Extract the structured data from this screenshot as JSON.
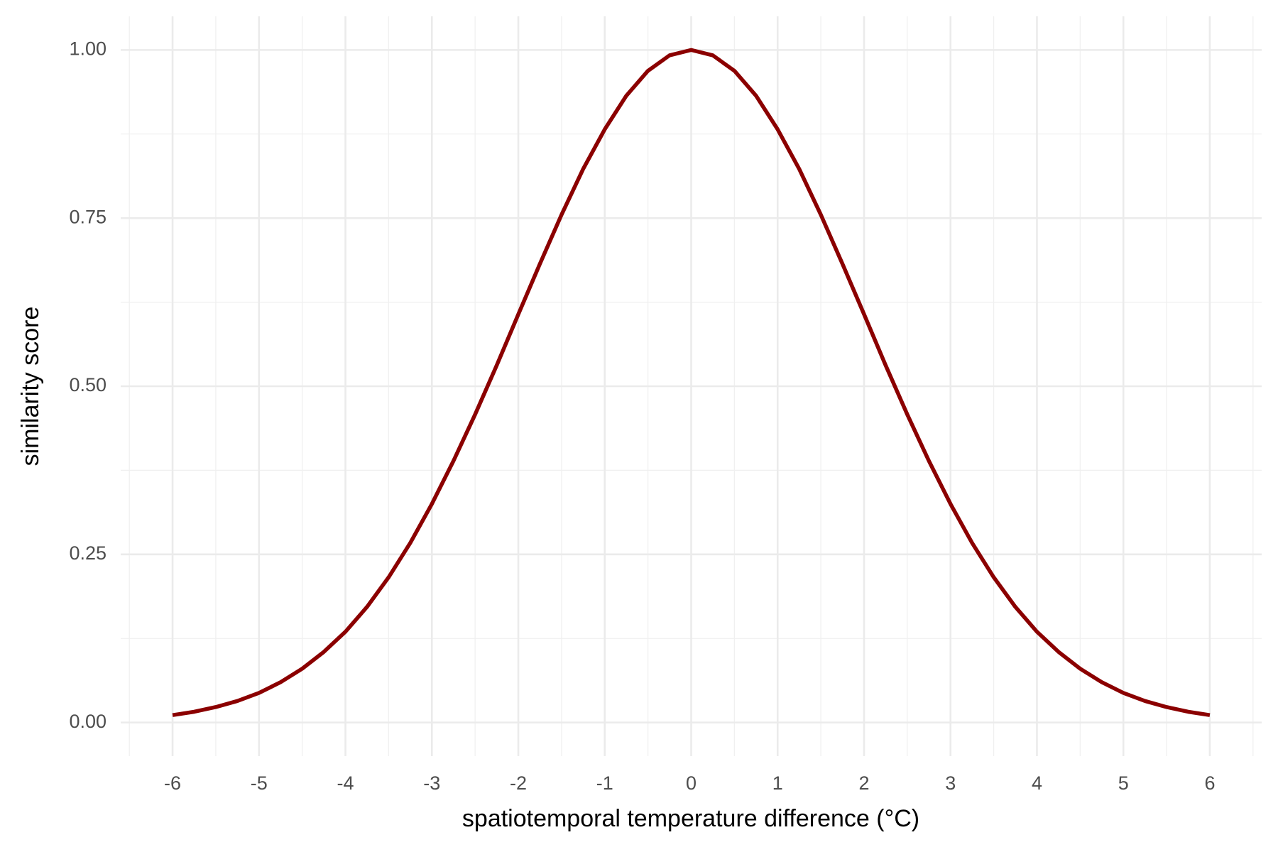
{
  "chart_data": {
    "type": "line",
    "x_label": "spatiotemporal temperature difference (°C)",
    "y_label": "similarity score",
    "x": [
      -6,
      -5.75,
      -5.5,
      -5.25,
      -5,
      -4.75,
      -4.5,
      -4.25,
      -4,
      -3.75,
      -3.5,
      -3.25,
      -3,
      -2.75,
      -2.5,
      -2.25,
      -2,
      -1.75,
      -1.5,
      -1.25,
      -1,
      -0.75,
      -0.5,
      -0.25,
      0,
      0.25,
      0.5,
      0.75,
      1,
      1.25,
      1.5,
      1.75,
      2,
      2.25,
      2.5,
      2.75,
      3,
      3.25,
      3.5,
      3.75,
      4,
      4.25,
      4.5,
      4.75,
      5,
      5.25,
      5.5,
      5.75,
      6
    ],
    "series": [
      {
        "color": "#8b0000",
        "values": [
          0.011,
          0.016,
          0.023,
          0.032,
          0.044,
          0.06,
          0.08,
          0.105,
          0.135,
          0.172,
          0.216,
          0.267,
          0.325,
          0.389,
          0.458,
          0.531,
          0.607,
          0.682,
          0.755,
          0.823,
          0.882,
          0.932,
          0.969,
          0.992,
          1,
          0.992,
          0.969,
          0.932,
          0.882,
          0.823,
          0.755,
          0.682,
          0.607,
          0.531,
          0.458,
          0.389,
          0.325,
          0.267,
          0.216,
          0.172,
          0.135,
          0.105,
          0.08,
          0.06,
          0.044,
          0.032,
          0.023,
          0.016,
          0.011
        ]
      }
    ],
    "xlim": [
      -6.6,
      6.6
    ],
    "ylim": [
      -0.05,
      1.05
    ],
    "xticks": [
      -6,
      -5,
      -4,
      -3,
      -2,
      -1,
      0,
      1,
      2,
      3,
      4,
      5,
      6
    ],
    "yticks": [
      {
        "value": 0,
        "label": "0.00"
      },
      {
        "value": 0.25,
        "label": "0.25"
      },
      {
        "value": 0.5,
        "label": "0.50"
      },
      {
        "value": 0.75,
        "label": "0.75"
      },
      {
        "value": 1,
        "label": "1.00"
      }
    ],
    "grid": true
  }
}
